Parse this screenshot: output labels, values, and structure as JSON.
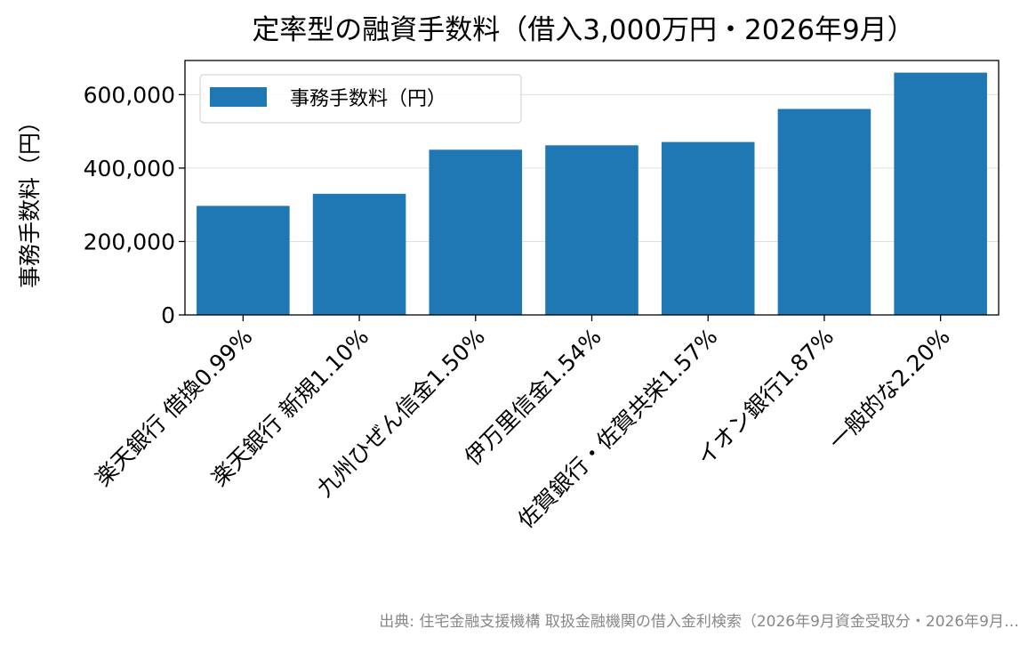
{
  "chart_data": {
    "type": "bar",
    "title": "定率型の融資手数料（借入3,000万円・2026年9月）",
    "xlabel": "",
    "ylabel": "事務手数料（円）",
    "categories": [
      "楽天銀行 借換0.99%",
      "楽天銀行 新規1.10%",
      "九州ひぜん信金1.50%",
      "伊万里信金1.54%",
      "佐賀銀行・佐賀共栄1.57%",
      "イオン銀行1.87%",
      "一般的な2.20%"
    ],
    "series": [
      {
        "name": "事務手数料（円）",
        "values": [
          297000,
          330000,
          450000,
          462000,
          471000,
          561000,
          660000
        ],
        "color": "#1f77b4"
      }
    ],
    "ylim": [
      0,
      693000
    ],
    "yticks": [
      0,
      200000,
      400000,
      600000
    ],
    "ytick_labels": [
      "0",
      "200,000",
      "400,000",
      "600,000"
    ],
    "grid": "horizontal",
    "legend_position": "top-left",
    "source": "出典: 住宅金融支援機構 取扱金融機関の借入金利検索（2026年9月資金受取分・2026年9月…"
  }
}
